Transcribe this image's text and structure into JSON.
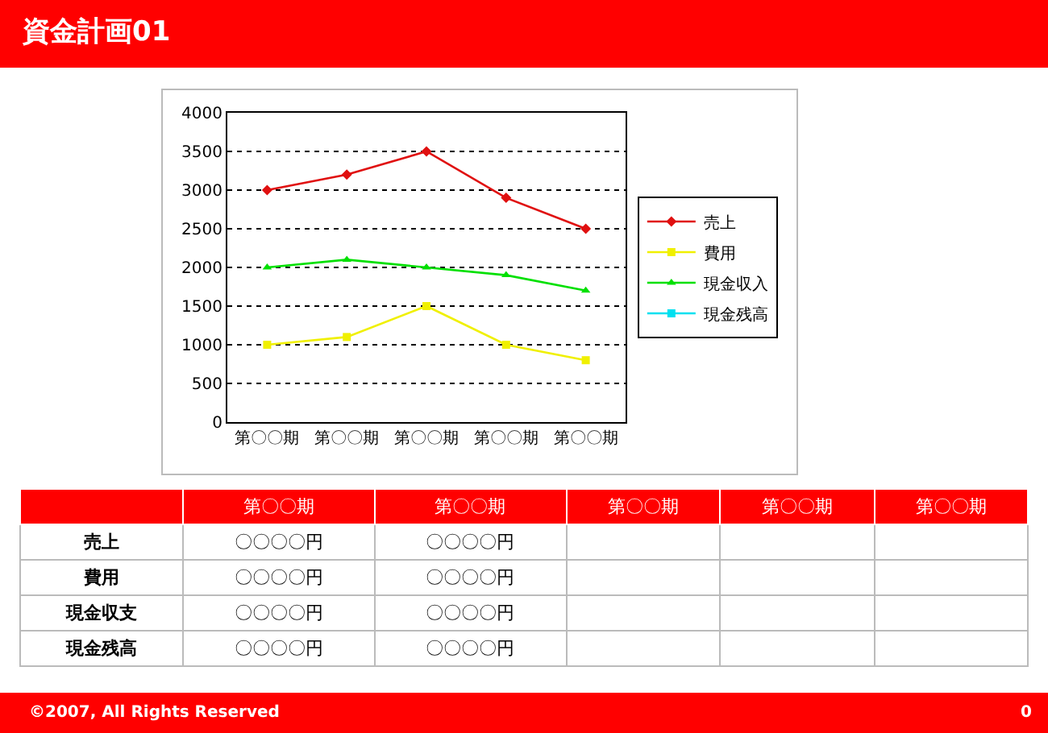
{
  "chart_data": [
    {
      "type": "line",
      "title": "資金計画01",
      "categories": [
        "第〇〇期",
        "第〇〇期",
        "第〇〇期",
        "第〇〇期",
        "第〇〇期"
      ],
      "series": [
        {
          "name": "売上",
          "color": "#e01010",
          "values": [
            3000,
            3200,
            3500,
            2900,
            2500
          ],
          "marker": "diamond"
        },
        {
          "name": "費用",
          "color": "#f0f000",
          "values": [
            1000,
            1100,
            1500,
            1000,
            800
          ],
          "marker": "square"
        },
        {
          "name": "現金収入",
          "color": "#00e000",
          "values": [
            2000,
            2100,
            2000,
            1900,
            1700
          ],
          "marker": "triangle"
        },
        {
          "name": "現金残高",
          "color": "#00e0f0",
          "values": [
            null,
            null,
            null,
            null,
            null
          ],
          "marker": "square"
        }
      ],
      "ylim": [
        0,
        4000
      ],
      "yticks": [
        0,
        500,
        1000,
        1500,
        2000,
        2500,
        3000,
        3500,
        4000
      ],
      "grid": "y",
      "legend": "right",
      "line_style": "solid"
    },
    {
      "type": "other",
      "categories": [
        "第〇〇期",
        "第〇〇期",
        "第〇〇期",
        "第〇〇期",
        "第〇〇期"
      ],
      "y_categories": [
        "売上",
        "費用",
        "現金収支",
        "現金残高"
      ],
      "cell_labels": [
        [
          "〇〇〇〇円",
          "〇〇〇〇円",
          null,
          null,
          null
        ],
        [
          "〇〇〇〇円",
          "〇〇〇〇円",
          null,
          null,
          null
        ],
        [
          "〇〇〇〇円",
          "〇〇〇〇円",
          null,
          null,
          null
        ],
        [
          "〇〇〇〇円",
          "〇〇〇〇円",
          null,
          null,
          null
        ]
      ],
      "annotations": [
        "©2007, All Rights Reserved",
        "0"
      ]
    }
  ]
}
